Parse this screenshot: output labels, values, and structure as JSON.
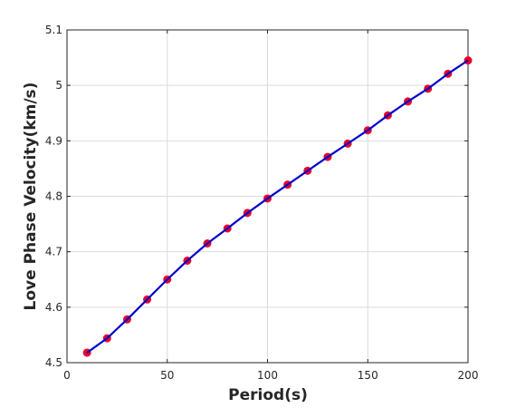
{
  "chart_data": {
    "type": "line",
    "title": "",
    "xlabel": "Period(s)",
    "ylabel": "Love Phase Velocity(km/s)",
    "xlim": [
      0,
      200
    ],
    "ylim": [
      4.5,
      5.1
    ],
    "xticks": [
      0,
      50,
      100,
      150,
      200
    ],
    "yticks": [
      4.5,
      4.6,
      4.7,
      4.8,
      4.9,
      5.0,
      5.1
    ],
    "xtick_labels": [
      "0",
      "50",
      "100",
      "150",
      "200"
    ],
    "ytick_labels": [
      "4.5",
      "4.6",
      "4.7",
      "4.8",
      "4.9",
      "5",
      "5.1"
    ],
    "grid": true,
    "legend": "none",
    "series": [
      {
        "line_color": "#0000cc",
        "marker_color": "#e8002a",
        "x": [
          10,
          20,
          30,
          40,
          50,
          60,
          70,
          80,
          90,
          100,
          110,
          120,
          130,
          140,
          150,
          160,
          170,
          180,
          190,
          200
        ],
        "y": [
          4.518,
          4.544,
          4.578,
          4.614,
          4.65,
          4.684,
          4.715,
          4.742,
          4.77,
          4.796,
          4.821,
          4.846,
          4.871,
          4.895,
          4.919,
          4.946,
          4.971,
          4.994,
          5.021,
          5.045
        ]
      }
    ]
  }
}
